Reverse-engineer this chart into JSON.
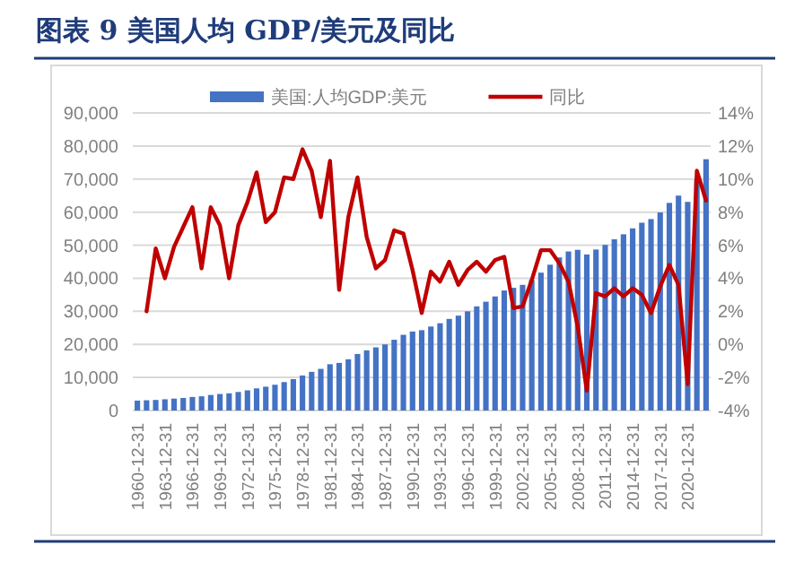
{
  "chart_data": {
    "type": "bar",
    "title": "图表 9  美国人均 GDP/美元及同比",
    "categories": [
      "1960-12-31",
      null,
      null,
      "1963-12-31",
      null,
      null,
      "1966-12-31",
      null,
      null,
      "1969-12-31",
      null,
      null,
      "1972-12-31",
      null,
      null,
      "1975-12-31",
      null,
      null,
      "1978-12-31",
      null,
      null,
      "1981-12-31",
      null,
      null,
      "1984-12-31",
      null,
      null,
      "1987-12-31",
      null,
      null,
      "1990-12-31",
      null,
      null,
      "1993-12-31",
      null,
      null,
      "1996-12-31",
      null,
      null,
      "1999-12-31",
      null,
      null,
      "2002-12-31",
      null,
      null,
      "2005-12-31",
      null,
      null,
      "2008-12-31",
      null,
      null,
      "2011-12-31",
      null,
      null,
      "2014-12-31",
      null,
      null,
      "2017-12-31",
      null,
      null,
      "2020-12-31",
      null,
      null
    ],
    "series": [
      {
        "name": "美国:人均GDP:美元",
        "color": "#4472c4",
        "values": [
          3000,
          3100,
          3200,
          3400,
          3600,
          3800,
          4100,
          4300,
          4700,
          5000,
          5200,
          5600,
          6100,
          6700,
          7200,
          7800,
          8600,
          9500,
          10600,
          11700,
          12600,
          14000,
          14400,
          15500,
          17100,
          18200,
          19100,
          20000,
          21400,
          22900,
          23900,
          24300,
          25400,
          26400,
          27700,
          28700,
          30000,
          31500,
          32900,
          34500,
          36300,
          37100,
          38000,
          39500,
          41700,
          44100,
          46300,
          48100,
          48600,
          47200,
          48700,
          50100,
          51800,
          53300,
          55100,
          56800,
          57900,
          59900,
          62800,
          65000,
          63100,
          69800,
          76000
        ]
      },
      {
        "name": "同比",
        "type": "line",
        "axis": "y2",
        "color": "#c00000",
        "values": [
          null,
          2.0,
          5.8,
          4.0,
          5.9,
          7.1,
          8.3,
          4.6,
          8.3,
          7.2,
          4.0,
          7.2,
          8.6,
          10.4,
          7.4,
          8.0,
          10.1,
          10.0,
          11.8,
          10.5,
          7.7,
          11.1,
          3.3,
          7.7,
          10.1,
          6.5,
          4.6,
          5.1,
          6.9,
          6.7,
          4.5,
          1.9,
          4.4,
          3.8,
          5.0,
          3.6,
          4.5,
          5.0,
          4.4,
          5.1,
          5.3,
          2.2,
          2.3,
          3.9,
          5.7,
          5.7,
          4.9,
          3.8,
          1.1,
          -2.8,
          3.1,
          2.9,
          3.4,
          2.9,
          3.4,
          3.0,
          1.9,
          3.5,
          4.8,
          3.6,
          -2.4,
          10.5,
          8.7
        ]
      }
    ],
    "ylim": [
      0,
      90000
    ],
    "yticks": [
      {
        "value": 0,
        "label": "0"
      },
      {
        "value": 10000,
        "label": "10,000"
      },
      {
        "value": 20000,
        "label": "20,000"
      },
      {
        "value": 30000,
        "label": "30,000"
      },
      {
        "value": 40000,
        "label": "40,000"
      },
      {
        "value": 50000,
        "label": "50,000"
      },
      {
        "value": 60000,
        "label": "60,000"
      },
      {
        "value": 70000,
        "label": "70,000"
      },
      {
        "value": 80000,
        "label": "80,000"
      },
      {
        "value": 90000,
        "label": "90,000"
      }
    ],
    "y2lim": [
      -4,
      14
    ],
    "y2ticks": [
      {
        "value": -4,
        "label": "-4%"
      },
      {
        "value": -2,
        "label": "-2%"
      },
      {
        "value": 0,
        "label": "0%"
      },
      {
        "value": 2,
        "label": "2%"
      },
      {
        "value": 4,
        "label": "4%"
      },
      {
        "value": 6,
        "label": "6%"
      },
      {
        "value": 8,
        "label": "8%"
      },
      {
        "value": 10,
        "label": "10%"
      },
      {
        "value": 12,
        "label": "12%"
      },
      {
        "value": 14,
        "label": "14%"
      }
    ],
    "grid": "y",
    "legend": "top"
  }
}
